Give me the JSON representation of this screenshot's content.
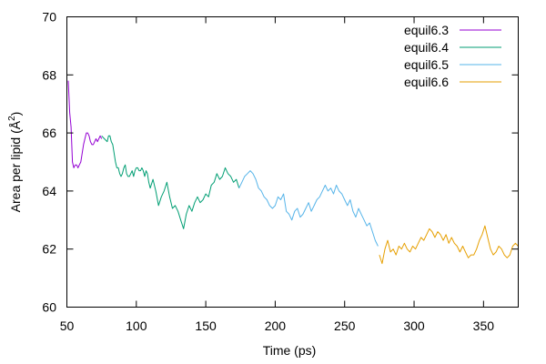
{
  "chart_data": {
    "type": "line",
    "title": "",
    "xlabel": "Time (ps)",
    "ylabel": "Area per lipid (Å 2)",
    "ylabel_parts": {
      "before": "Area per lipid (",
      "angstrom": "Å",
      "superscript": "2",
      "after": ")"
    },
    "xlim": [
      50,
      375
    ],
    "ylim": [
      60,
      70
    ],
    "xticks": [
      50,
      100,
      150,
      200,
      250,
      300,
      350
    ],
    "yticks": [
      60,
      62,
      64,
      66,
      68,
      70
    ],
    "grid": false,
    "legend_position": "top-right",
    "series": [
      {
        "name": "equil6.3",
        "color": "#9400d3",
        "x": [
          51,
          52,
          53,
          54,
          55,
          56,
          57,
          58,
          59,
          60,
          61,
          62,
          63,
          64,
          65,
          66,
          67,
          68,
          69,
          70,
          71,
          72,
          73,
          74,
          75
        ],
        "y": [
          67.8,
          66.7,
          66.2,
          65.0,
          64.8,
          64.9,
          64.9,
          64.8,
          64.9,
          65.0,
          65.3,
          65.6,
          65.8,
          66.0,
          66.0,
          65.9,
          65.7,
          65.6,
          65.6,
          65.7,
          65.8,
          65.7,
          65.8,
          65.9,
          65.8
        ]
      },
      {
        "name": "equil6.4",
        "color": "#009e73",
        "x": [
          75,
          77,
          79,
          80,
          81,
          82,
          83,
          84,
          85,
          86,
          87,
          88,
          89,
          90,
          91,
          92,
          93,
          94,
          95,
          96,
          97,
          98,
          99,
          100,
          101,
          102,
          103,
          104,
          105,
          106,
          107,
          108,
          109,
          110,
          112,
          114,
          116,
          118,
          120,
          122,
          124,
          126,
          128,
          130,
          132,
          134,
          136,
          138,
          140,
          142,
          144,
          146,
          148,
          150,
          152,
          154,
          156,
          158,
          160,
          162,
          164,
          166,
          168,
          170,
          172,
          174
        ],
        "y": [
          65.9,
          65.8,
          65.7,
          65.9,
          65.9,
          65.7,
          65.6,
          65.3,
          65.0,
          64.8,
          64.8,
          64.6,
          64.5,
          64.6,
          64.8,
          64.9,
          64.6,
          64.5,
          64.5,
          64.6,
          64.7,
          64.5,
          64.7,
          64.8,
          64.8,
          64.7,
          64.7,
          64.8,
          64.7,
          64.5,
          64.7,
          64.6,
          64.3,
          64.1,
          64.4,
          64.0,
          63.5,
          63.8,
          64.0,
          64.3,
          63.8,
          63.4,
          63.5,
          63.3,
          63.0,
          62.7,
          63.2,
          63.5,
          63.3,
          63.6,
          63.8,
          63.6,
          63.7,
          63.9,
          63.8,
          64.2,
          64.3,
          64.6,
          64.4,
          64.5,
          64.8,
          64.6,
          64.5,
          64.3,
          64.4,
          64.1
        ]
      },
      {
        "name": "equil6.5",
        "color": "#56b4e9",
        "x": [
          174,
          176,
          178,
          180,
          182,
          184,
          186,
          188,
          190,
          192,
          194,
          196,
          198,
          200,
          202,
          204,
          206,
          208,
          210,
          212,
          214,
          216,
          218,
          220,
          222,
          224,
          226,
          228,
          230,
          232,
          234,
          236,
          238,
          240,
          242,
          244,
          246,
          248,
          250,
          252,
          254,
          256,
          258,
          260,
          262,
          264,
          266,
          268,
          270,
          272,
          274
        ],
        "y": [
          64.1,
          64.3,
          64.5,
          64.6,
          64.7,
          64.6,
          64.4,
          64.1,
          64.0,
          63.8,
          63.7,
          63.5,
          63.4,
          63.5,
          63.8,
          63.7,
          63.9,
          63.3,
          63.2,
          63.0,
          63.3,
          63.4,
          63.1,
          63.2,
          63.4,
          63.6,
          63.3,
          63.5,
          63.7,
          63.8,
          64.0,
          64.2,
          64.0,
          64.1,
          63.9,
          64.2,
          64.0,
          63.9,
          63.7,
          63.5,
          63.7,
          63.3,
          63.1,
          63.4,
          63.2,
          63.0,
          62.8,
          62.9,
          62.6,
          62.3,
          62.1
        ]
      },
      {
        "name": "equil6.6",
        "color": "#e69f00",
        "x": [
          275,
          277,
          279,
          281,
          283,
          285,
          287,
          289,
          291,
          293,
          295,
          297,
          299,
          301,
          303,
          305,
          307,
          309,
          311,
          313,
          315,
          317,
          319,
          321,
          323,
          325,
          327,
          329,
          331,
          333,
          335,
          337,
          339,
          341,
          343,
          345,
          347,
          349,
          351,
          353,
          355,
          357,
          359,
          361,
          363,
          365,
          367,
          369,
          371,
          373,
          375
        ],
        "y": [
          61.8,
          61.5,
          62.0,
          62.3,
          61.9,
          62.0,
          61.8,
          62.1,
          62.0,
          62.2,
          62.0,
          61.9,
          62.1,
          62.0,
          62.2,
          62.4,
          62.3,
          62.5,
          62.7,
          62.6,
          62.4,
          62.6,
          62.5,
          62.3,
          62.5,
          62.2,
          62.4,
          62.2,
          62.1,
          61.9,
          62.1,
          61.9,
          61.7,
          61.8,
          61.8,
          62.0,
          62.3,
          62.5,
          62.8,
          62.4,
          62.0,
          61.8,
          61.9,
          62.1,
          62.0,
          61.8,
          61.7,
          61.8,
          62.1,
          62.2,
          62.1
        ]
      }
    ]
  }
}
